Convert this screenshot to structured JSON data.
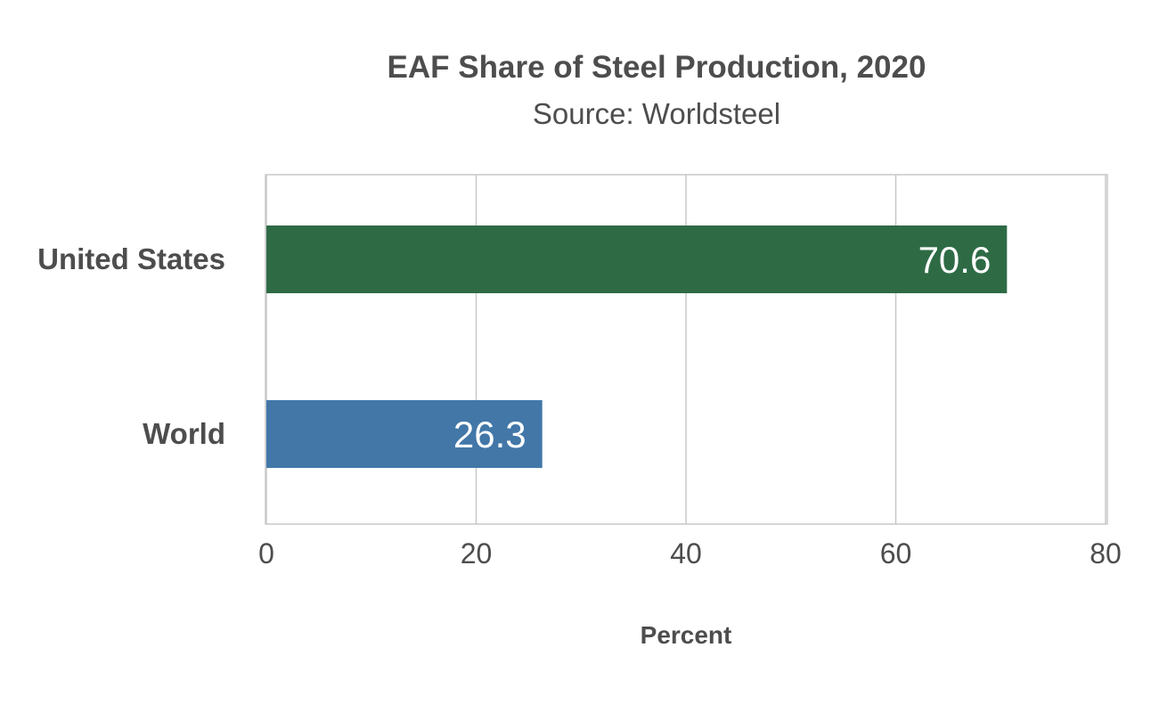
{
  "chart_data": {
    "type": "bar",
    "orientation": "horizontal",
    "title": "EAF Share of Steel Production, 2020",
    "subtitle": "Source: Worldsteel",
    "xlabel": "Percent",
    "ylabel": "",
    "xlim": [
      0,
      80
    ],
    "xticks": [
      0,
      20,
      40,
      60,
      80
    ],
    "grid": true,
    "categories": [
      "United States",
      "World"
    ],
    "values": [
      70.6,
      26.3
    ],
    "data_labels": [
      "70.6",
      "26.3"
    ],
    "colors": [
      "#2e6b45",
      "#4277a8"
    ]
  }
}
